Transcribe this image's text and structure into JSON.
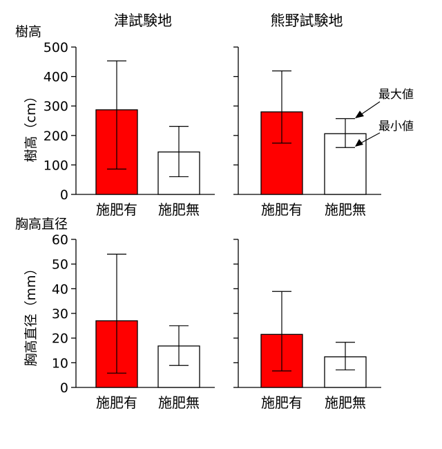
{
  "columns": [
    "津試験地",
    "熊野試験地"
  ],
  "rows": [
    {
      "label": "樹高",
      "axis_title": "樹高（cm）",
      "ylim": [
        0,
        500
      ],
      "ticks": [
        0,
        100,
        200,
        300,
        400,
        500
      ]
    },
    {
      "label": "胸高直径",
      "axis_title": "胸高直径（mm）",
      "ylim": [
        0,
        60
      ],
      "ticks": [
        0,
        10,
        20,
        30,
        40,
        50,
        60
      ]
    }
  ],
  "annotations": {
    "max_label": "最大値",
    "min_label": "最小値"
  },
  "colors": {
    "fertilized": "#ff0000",
    "unfertilized": "#ffffff",
    "stroke": "#000000"
  },
  "chart_data": [
    {
      "type": "bar",
      "site": "津試験地",
      "variable": "樹高",
      "categories": [
        "施肥有",
        "施肥無"
      ],
      "values": [
        287,
        144
      ],
      "min": [
        86,
        60
      ],
      "max": [
        453,
        231
      ],
      "ylabel": "樹高（cm）",
      "ylim": [
        0,
        500
      ],
      "ticks": [
        0,
        100,
        200,
        300,
        400,
        500
      ],
      "show_tick_labels": true
    },
    {
      "type": "bar",
      "site": "熊野試験地",
      "variable": "樹高",
      "categories": [
        "施肥有",
        "施肥無"
      ],
      "values": [
        280,
        206
      ],
      "min": [
        174,
        159
      ],
      "max": [
        419,
        257
      ],
      "ylabel": "",
      "ylim": [
        0,
        500
      ],
      "ticks": [
        0,
        100,
        200,
        300,
        400,
        500
      ],
      "show_tick_labels": false
    },
    {
      "type": "bar",
      "site": "津試験地",
      "variable": "胸高直径",
      "categories": [
        "施肥有",
        "施肥無"
      ],
      "values": [
        27,
        16.8
      ],
      "min": [
        5.8,
        8.9
      ],
      "max": [
        54,
        25
      ],
      "ylabel": "胸高直径（mm）",
      "ylim": [
        0,
        60
      ],
      "ticks": [
        0,
        10,
        20,
        30,
        40,
        50,
        60
      ],
      "show_tick_labels": true
    },
    {
      "type": "bar",
      "site": "熊野試験地",
      "variable": "胸高直径",
      "categories": [
        "施肥有",
        "施肥無"
      ],
      "values": [
        21.5,
        12.4
      ],
      "min": [
        6.7,
        7.1
      ],
      "max": [
        38.9,
        18.3
      ],
      "ylabel": "",
      "ylim": [
        0,
        60
      ],
      "ticks": [
        0,
        10,
        20,
        30,
        40,
        50,
        60
      ],
      "show_tick_labels": false
    }
  ]
}
